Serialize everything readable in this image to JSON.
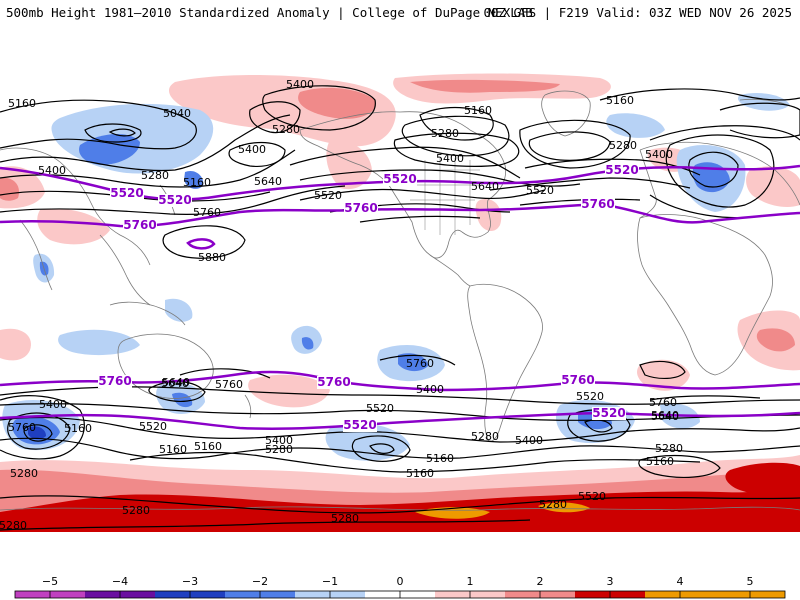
{
  "header": {
    "left_title": "500mb Height 1981–2010 Standardized Anomaly | College of DuPage NEXLAB",
    "right_title": "00Z GFS | F219 Valid: 03Z WED NOV 26 2025"
  },
  "colors": {
    "anom_neg5": "#c040c0",
    "anom_neg4": "#6a0fa0",
    "anom_neg3": "#1f3fc0",
    "anom_neg2": "#4f7ee8",
    "anom_neg1": "#b7d2f5",
    "anom_pos1": "#fbc8c8",
    "anom_pos2": "#f08a8a",
    "anom_pos3": "#cc0000",
    "anom_pos4": "#ee9a00",
    "contour_black": "#000000",
    "contour_purple": "#8a00c8",
    "land_outline": "#7a7a7a"
  },
  "contours": {
    "black_labels": [
      {
        "text": "5400"
      },
      {
        "text": "5160"
      },
      {
        "text": "5040"
      },
      {
        "text": "5400"
      },
      {
        "text": "5280"
      },
      {
        "text": "5400"
      },
      {
        "text": "5280"
      },
      {
        "text": "5160"
      },
      {
        "text": "5640"
      },
      {
        "text": "5520"
      },
      {
        "text": "5760"
      },
      {
        "text": "5880"
      },
      {
        "text": "5160"
      },
      {
        "text": "5280"
      },
      {
        "text": "5400"
      },
      {
        "text": "5640"
      },
      {
        "text": "5520"
      },
      {
        "text": "5160"
      },
      {
        "text": "5280"
      },
      {
        "text": "5400"
      },
      {
        "text": "5760"
      },
      {
        "text": "5400"
      },
      {
        "text": "5160"
      },
      {
        "text": "5520"
      },
      {
        "text": "5640"
      },
      {
        "text": "5760"
      },
      {
        "text": "5400"
      },
      {
        "text": "5160"
      },
      {
        "text": "5280"
      },
      {
        "text": "5520"
      },
      {
        "text": "5160"
      },
      {
        "text": "5280"
      },
      {
        "text": "5160"
      },
      {
        "text": "5400"
      },
      {
        "text": "5520"
      },
      {
        "text": "5640"
      },
      {
        "text": "5280"
      },
      {
        "text": "5400"
      },
      {
        "text": "5520"
      },
      {
        "text": "5760"
      },
      {
        "text": "5640"
      },
      {
        "text": "5280"
      },
      {
        "text": "5160"
      },
      {
        "text": "5280"
      },
      {
        "text": "5280"
      },
      {
        "text": "5280"
      },
      {
        "text": "5280"
      },
      {
        "text": "5760"
      },
      {
        "text": "5640"
      },
      {
        "text": "5160"
      }
    ],
    "purple_labels": [
      {
        "text": "5520"
      },
      {
        "text": "5760"
      },
      {
        "text": "5520"
      },
      {
        "text": "5760"
      },
      {
        "text": "5520"
      },
      {
        "text": "5760"
      },
      {
        "text": "5760"
      },
      {
        "text": "5760"
      },
      {
        "text": "5760"
      },
      {
        "text": "5520"
      },
      {
        "text": "5520"
      },
      {
        "text": "5520"
      }
    ]
  },
  "colorbar": {
    "ticks": [
      "−5",
      "−4",
      "−3",
      "−2",
      "−1",
      "0",
      "1",
      "2",
      "3",
      "4",
      "5"
    ],
    "min": -5.5,
    "max": 5.5
  }
}
